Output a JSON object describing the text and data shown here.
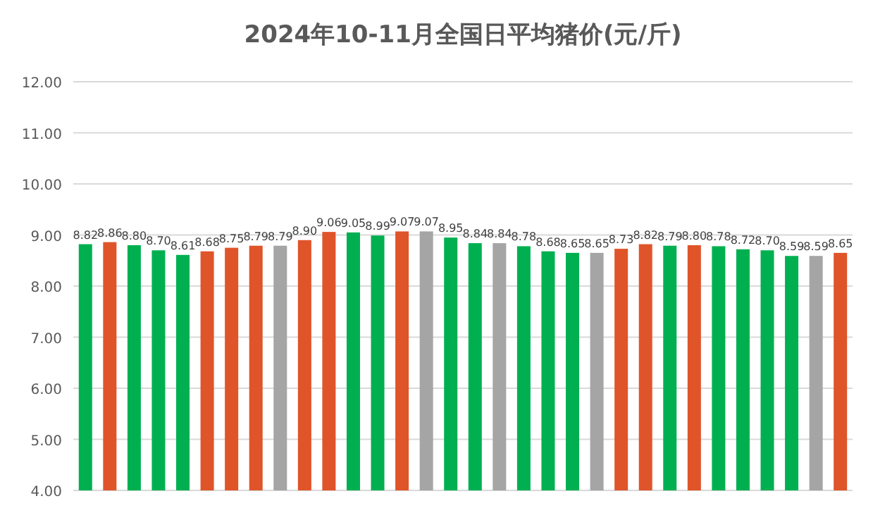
{
  "chart_data": {
    "type": "bar",
    "title": "2024年10-11月全国日平均猪价(元/斤)",
    "categories": [
      null,
      null,
      null,
      null,
      null,
      null,
      null,
      null,
      null,
      null,
      null,
      null,
      null,
      null,
      null,
      null,
      null,
      null,
      null,
      null,
      null,
      null,
      null,
      null,
      null,
      null,
      null,
      null,
      null,
      null,
      null,
      null
    ],
    "values": [
      8.82,
      8.86,
      8.8,
      8.7,
      8.61,
      8.68,
      8.75,
      8.79,
      8.79,
      8.9,
      9.06,
      9.05,
      8.99,
      9.07,
      9.07,
      8.95,
      8.84,
      8.84,
      8.78,
      8.68,
      8.65,
      8.65,
      8.73,
      8.82,
      8.79,
      8.8,
      8.78,
      8.72,
      8.7,
      8.59,
      8.59,
      8.65
    ],
    "colors": [
      "#00b050",
      "#e0542a",
      "#00b050",
      "#00b050",
      "#00b050",
      "#e0542a",
      "#e0542a",
      "#e0542a",
      "#a5a5a5",
      "#e0542a",
      "#e0542a",
      "#00b050",
      "#00b050",
      "#e0542a",
      "#a5a5a5",
      "#00b050",
      "#00b050",
      "#a5a5a5",
      "#00b050",
      "#00b050",
      "#00b050",
      "#a5a5a5",
      "#e0542a",
      "#e0542a",
      "#00b050",
      "#e0542a",
      "#00b050",
      "#00b050",
      "#00b050",
      "#00b050",
      "#a5a5a5",
      "#e0542a"
    ],
    "value_labels": [
      "8.82",
      "8.86",
      "8.80",
      "8.70",
      "8.61",
      "8.68",
      "8.75",
      "8.79",
      "8.79",
      "8.90",
      "9.06",
      "9.05",
      "8.99",
      "9.07",
      "9.07",
      "8.95",
      "8.84",
      "8.84",
      "8.78",
      "8.68",
      "8.65",
      "8.65",
      "8.73",
      "8.82",
      "8.79",
      "8.80",
      "8.78",
      "8.72",
      "8.70",
      "8.59",
      "8.59",
      "8.65"
    ],
    "ylim": [
      4,
      12
    ],
    "yticks": [
      {
        "value": 4,
        "label": "4.00"
      },
      {
        "value": 5,
        "label": "5.00"
      },
      {
        "value": 6,
        "label": "6.00"
      },
      {
        "value": 7,
        "label": "7.00"
      },
      {
        "value": 8,
        "label": "8.00"
      },
      {
        "value": 9,
        "label": "9.00"
      },
      {
        "value": 10,
        "label": "10.00"
      },
      {
        "value": 11,
        "label": "11.00"
      },
      {
        "value": 12,
        "label": "12.00"
      }
    ],
    "grid": "y",
    "tick_labels": "y"
  }
}
